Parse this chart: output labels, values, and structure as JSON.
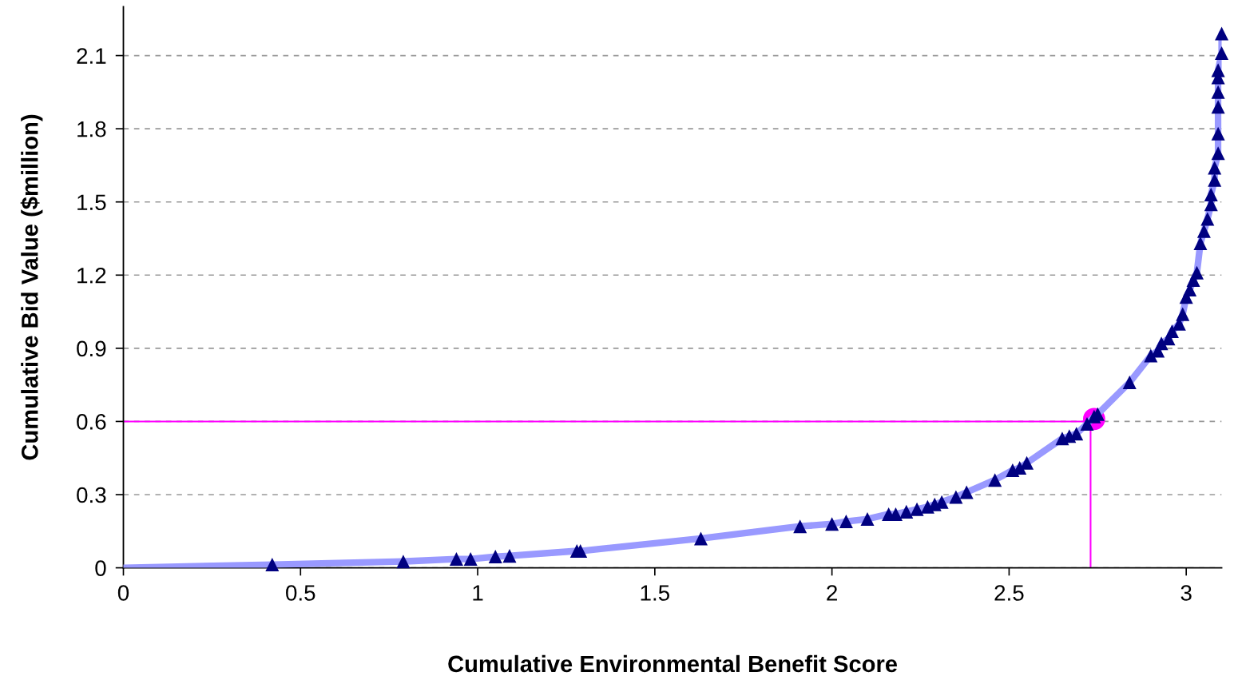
{
  "chart_data": {
    "type": "scatter",
    "xlabel": "Cumulative Environmental Benefit Score",
    "ylabel": "Cumulative Bid Value ($million)",
    "xlim": [
      0,
      3.1
    ],
    "ylim": [
      0,
      2.3
    ],
    "xticks": [
      0,
      0.5,
      1,
      1.5,
      2,
      2.5,
      3
    ],
    "yticks": [
      0,
      0.3,
      0.6,
      0.9,
      1.2,
      1.5,
      1.8,
      2.1
    ],
    "grid": "y",
    "series": [
      {
        "type": "line",
        "color": "#9999ff",
        "marker": "none",
        "x": [
          0,
          0.42,
          0.79,
          0.94,
          0.98,
          1.05,
          1.09,
          1.28,
          1.29,
          1.63,
          1.91,
          2.0,
          2.04,
          2.1,
          2.16,
          2.18,
          2.21,
          2.24,
          2.27,
          2.29,
          2.31,
          2.35,
          2.38,
          2.46,
          2.51,
          2.53,
          2.55,
          2.65,
          2.67,
          2.69,
          2.72,
          2.74,
          2.75,
          2.84,
          2.9,
          2.92,
          2.93,
          2.95,
          2.96,
          2.98,
          2.99,
          3.0,
          3.01,
          3.02,
          3.03,
          3.04,
          3.05,
          3.06,
          3.07,
          3.07,
          3.08,
          3.08,
          3.09,
          3.09,
          3.09,
          3.09,
          3.09,
          3.09,
          3.1,
          3.1
        ],
        "values": [
          0,
          0.013,
          0.026,
          0.036,
          0.036,
          0.046,
          0.049,
          0.069,
          0.069,
          0.12,
          0.17,
          0.18,
          0.19,
          0.2,
          0.22,
          0.22,
          0.23,
          0.24,
          0.25,
          0.26,
          0.27,
          0.29,
          0.31,
          0.36,
          0.4,
          0.41,
          0.43,
          0.53,
          0.54,
          0.55,
          0.59,
          0.62,
          0.63,
          0.76,
          0.87,
          0.89,
          0.92,
          0.94,
          0.97,
          1.0,
          1.04,
          1.11,
          1.14,
          1.18,
          1.21,
          1.33,
          1.38,
          1.43,
          1.49,
          1.53,
          1.59,
          1.64,
          1.7,
          1.78,
          1.89,
          1.95,
          2.01,
          2.04,
          2.11,
          2.19
        ]
      },
      {
        "type": "line",
        "color": "#ff00ff",
        "marker": "none",
        "x": [
          0,
          2.73,
          2.73
        ],
        "values": [
          0.6,
          0.6,
          0
        ]
      },
      {
        "type": "scatter",
        "color": "#ff00ff",
        "marker": "circle",
        "x": [
          2.74
        ],
        "values": [
          0.61
        ]
      },
      {
        "color": "#000080",
        "marker": "triangle",
        "x": [
          0.42,
          0.79,
          0.94,
          0.98,
          1.05,
          1.09,
          1.28,
          1.29,
          1.63,
          1.91,
          2.0,
          2.04,
          2.1,
          2.16,
          2.18,
          2.21,
          2.24,
          2.27,
          2.29,
          2.31,
          2.35,
          2.38,
          2.46,
          2.51,
          2.53,
          2.55,
          2.65,
          2.67,
          2.69,
          2.72,
          2.74,
          2.75,
          2.84,
          2.9,
          2.92,
          2.93,
          2.95,
          2.96,
          2.98,
          2.99,
          3.0,
          3.01,
          3.02,
          3.03,
          3.04,
          3.05,
          3.06,
          3.07,
          3.07,
          3.08,
          3.08,
          3.09,
          3.09,
          3.09,
          3.09,
          3.09,
          3.09,
          3.1,
          3.1
        ],
        "values": [
          0.013,
          0.026,
          0.036,
          0.036,
          0.046,
          0.049,
          0.069,
          0.069,
          0.12,
          0.17,
          0.18,
          0.19,
          0.2,
          0.22,
          0.22,
          0.23,
          0.24,
          0.25,
          0.26,
          0.27,
          0.29,
          0.31,
          0.36,
          0.4,
          0.41,
          0.43,
          0.53,
          0.54,
          0.55,
          0.59,
          0.62,
          0.63,
          0.76,
          0.87,
          0.89,
          0.92,
          0.94,
          0.97,
          1.0,
          1.04,
          1.11,
          1.14,
          1.18,
          1.21,
          1.33,
          1.38,
          1.43,
          1.49,
          1.53,
          1.59,
          1.64,
          1.7,
          1.78,
          1.89,
          1.95,
          2.01,
          2.04,
          2.11,
          2.19
        ]
      }
    ]
  }
}
